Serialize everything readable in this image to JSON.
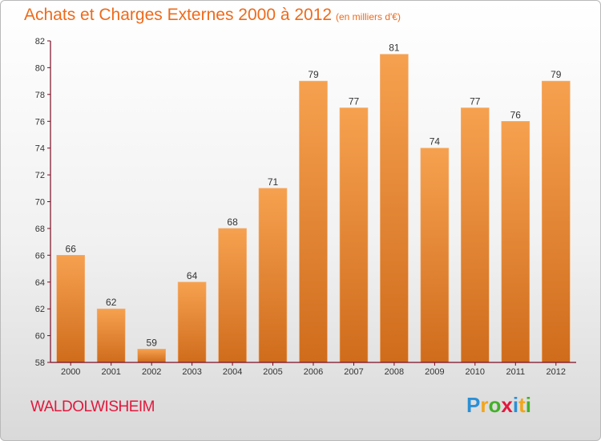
{
  "title": "Achats et Charges Externes 2000 à 2012",
  "unit": "(en milliers d'€)",
  "commune": "WALDOLWISHEIM",
  "logo": {
    "letters": [
      {
        "ch": "P",
        "color": "#2b8fd6"
      },
      {
        "ch": "r",
        "color": "#f2a51c"
      },
      {
        "ch": "o",
        "color": "#43b02a"
      },
      {
        "ch": "x",
        "color": "#e2183c"
      },
      {
        "ch": "i",
        "color": "#2b8fd6"
      },
      {
        "ch": "t",
        "color": "#f2a51c"
      },
      {
        "ch": "i",
        "color": "#43b02a"
      }
    ]
  },
  "colors": {
    "bar_top": "#f6a14f",
    "bar_bottom": "#cf6c1c",
    "accent": "#ee6a1b",
    "axis": "#7a0d24"
  },
  "chart_data": {
    "type": "bar",
    "title": "Achats et Charges Externes 2000 à 2012",
    "unit": "(en milliers d'€)",
    "categories": [
      "2000",
      "2001",
      "2002",
      "2003",
      "2004",
      "2005",
      "2006",
      "2007",
      "2008",
      "2009",
      "2010",
      "2011",
      "2012"
    ],
    "values": [
      66,
      62,
      59,
      64,
      68,
      71,
      79,
      77,
      81,
      74,
      77,
      76,
      79
    ],
    "ylim": [
      58,
      82
    ],
    "yticks": [
      58,
      60,
      62,
      64,
      66,
      68,
      70,
      72,
      74,
      76,
      78,
      80,
      82
    ],
    "grid": false,
    "legend": "none"
  }
}
